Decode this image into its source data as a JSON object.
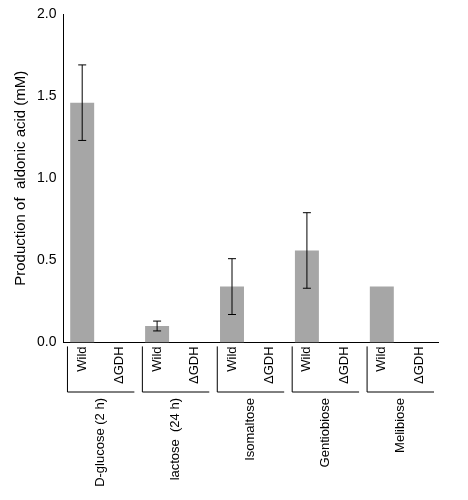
{
  "chart_data": {
    "type": "bar",
    "y_label": "Production of  aldonic acid (mM)",
    "categories": [
      "Wild",
      "ΔGDH",
      "Wild",
      "ΔGDH",
      "Wild",
      "ΔGDH",
      "Wild",
      "ΔGDH",
      "Wild",
      "ΔGDH"
    ],
    "groups": [
      "D-glucose (2 h)",
      "lactose  (24 h)",
      "Isomaltose",
      "Gentiobiose",
      "Melibiose"
    ],
    "values": [
      1.46,
      0,
      0.1,
      0,
      0.34,
      0,
      0.56,
      0,
      0.34,
      0
    ],
    "errors": [
      0.23,
      null,
      0.03,
      null,
      0.17,
      null,
      0.23,
      null,
      null,
      null
    ],
    "color": "#a6a6a6",
    "ylim": [
      0,
      2.0
    ],
    "yticks": [
      {
        "value": 0,
        "label": "0.0"
      },
      {
        "value": 0.5,
        "label": "0.5"
      },
      {
        "value": 1,
        "label": "1.0"
      },
      {
        "value": 1.5,
        "label": "1.5"
      },
      {
        "value": 2,
        "label": "2.0"
      }
    ],
    "grid": false
  }
}
